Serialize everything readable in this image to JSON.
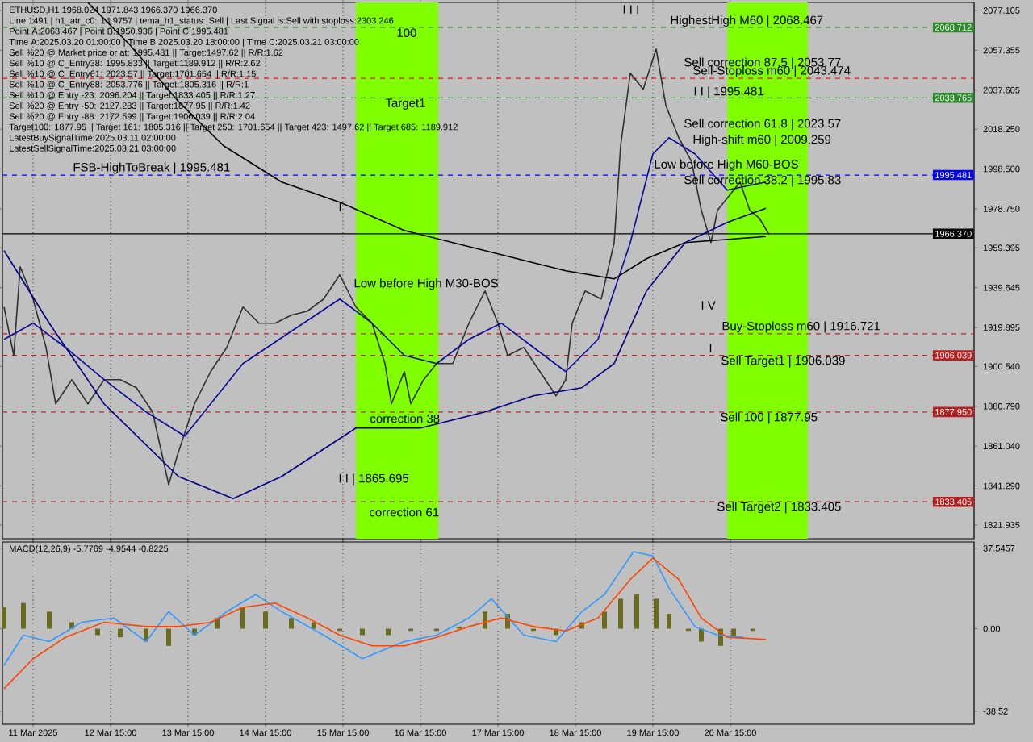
{
  "chart_data": [
    {
      "type": "line",
      "title": "ETHUSD,H1  1968.024 1971.843 1966.370 1966.370",
      "annotations": [
        "Line:1491 | h1_atr_c0: 14.9757 | tema_h1_status: Sell | Last Signal is:Sell with stoploss:2303.246",
        "Point A:2068.467 | Point B:1950.936 | Point C:1995.481",
        "Time A:2025.03.20 01:00:00 | Time B:2025.03.20 18:00:00 | Time C:2025.03.21 03:00:00",
        "Sell %20 @ Market price or at: 1995.481 || Target:1497.62 || R/R:1.62",
        "Sell %10 @ C_Entry38: 1995.833 || Target:1189.912 || R/R:2.62",
        "Sell %10 @ C_Entry61: 2023.57 || Target:1701.654 || R/R:1.15",
        "Sell %10 @ C_Entry88: 2053.776 || Target:1805.316 || R/R:1",
        "Sell %10 @ Entry -23: 2096.204 || Target:1833.405 || R/R:1.27",
        "Sell %20 @ Entry -50: 2127.233 || Target:1877.95 || R/R:1.42",
        "Sell %20 @ Entry -88: 2172.599 || Target:1906.039 || R/R:2.04",
        "Target100: 1877.95 || Target 161: 1805.316 || Target 250: 1701.654 || Target 423: 1497.62 || Target 685: 1189.912",
        "LatestBuySignalTime:2025.03.11 02:00:00",
        "LatestSellSignalTime:2025.03.21 03:00:00",
        "I I I",
        {
          "text": "HighestHigh    M60 | 2068.467",
          "x": "2025-03-19T20:00",
          "y": 2068.467
        },
        "Sell correction 87.5 | 2053.77",
        {
          "text": "Sell-Stoploss m60 | 2043.474",
          "x": "2025-03-20T03:00",
          "y": 2043.474
        },
        "I I | 1995.481",
        "Sell correction 61.8 | 2023.57",
        {
          "text": "High-shift m60 | 2009.259",
          "x": "2025-03-20T03:00",
          "y": 2009.259
        },
        {
          "text": "Low before High    M60-BOS",
          "x": "2025-03-19T15:00",
          "y": 1997
        },
        "Sell correction 38.2 | 1995.83",
        "I V",
        {
          "text": "Buy-Stoploss m60 | 1916.721",
          "x": "2025-03-20T12:00",
          "y": 1916.721
        },
        {
          "text": "I",
          "x": "2025-03-20T08:00",
          "y": 1907
        },
        "Sell Target1 | 1906.039",
        "Sell 100 | 1877.95",
        "Sell Target2 | 1833.405",
        {
          "text": "FSB-HighToBreak | 1995.481",
          "x": "2025-03-12T03:00",
          "y": 1995.481
        },
        {
          "text": "Low before High    M30-BOS",
          "x": "2025-03-15T18:00",
          "y": 1938
        },
        "I I | 1865.695",
        {
          "text": "correction 38",
          "x": "2025-03-15T23:00",
          "y": 1872
        },
        "correction 61",
        "100",
        "Target1",
        "I"
      ],
      "xlim": [
        "2025-03-11T05:30",
        "2025-03-23T18:30"
      ],
      "xticks": [
        {
          "value": "2025-03-11T15:00",
          "label": null
        },
        {
          "value": "2025-03-12T15:00",
          "label": null
        },
        {
          "value": "2025-03-13T15:00",
          "label": null
        },
        {
          "value": "2025-03-14T15:00",
          "label": null
        },
        {
          "value": "2025-03-15T15:00",
          "label": null
        },
        {
          "value": "2025-03-16T15:00",
          "label": null
        },
        {
          "value": "2025-03-17T15:00",
          "label": null
        },
        {
          "value": "2025-03-18T15:00",
          "label": null
        },
        {
          "value": "2025-03-19T15:00",
          "label": null
        },
        {
          "value": "2025-03-20T15:00",
          "label": null
        }
      ],
      "ylim": [
        1815.1,
        2081.1
      ],
      "yticks": [
        {
          "value": 2077.105,
          "label": "2077.105"
        },
        {
          "value": 2057.355,
          "label": "2057.355"
        },
        {
          "value": 2037.605,
          "label": "2037.605"
        },
        {
          "value": 2018.25,
          "label": "2018.250"
        },
        {
          "value": 1998.5,
          "label": "1998.500"
        },
        {
          "value": 1978.75,
          "label": "1978.750"
        },
        {
          "value": 1959.395,
          "label": "1959.395"
        },
        {
          "value": 1939.645,
          "label": "1939.645"
        },
        {
          "value": 1919.895,
          "label": "1919.895"
        },
        {
          "value": 1900.54,
          "label": "1900.540"
        },
        {
          "value": 1880.79,
          "label": "1880.790"
        },
        {
          "value": 1861.04,
          "label": "1861.040"
        },
        {
          "value": 1841.29,
          "label": "1841.290"
        },
        {
          "value": 1821.935,
          "label": "1821.935"
        }
      ],
      "tick_labels": "y",
      "grid": "x",
      "bands": [
        {
          "axis": "x",
          "from": "2025-03-15T19:00",
          "to": "2025-03-16T20:30",
          "color": "#80ff00"
        },
        {
          "axis": "x",
          "from": "2025-03-20T14:00",
          "to": "2025-03-21T15:00",
          "color": "#80ff00"
        }
      ],
      "ref_lines": [
        {
          "axis": "y",
          "value": 2068.712,
          "label": "2068.712",
          "color": "#2e8b2e",
          "line_style": "dashed"
        },
        {
          "axis": "y",
          "value": 2043.474,
          "color": "#cc2020",
          "line_style": "dashed"
        },
        {
          "axis": "y",
          "value": 2033.765,
          "label": "2033.765",
          "color": "#2e8b2e",
          "line_style": "dashed"
        },
        {
          "axis": "y",
          "value": 1995.481,
          "label": "1995.481",
          "color": "#0000ff",
          "line_style": "dashed"
        },
        {
          "axis": "y",
          "value": 1966.37,
          "label": "1966.370",
          "color": "#000000",
          "line_style": "solid"
        },
        {
          "axis": "y",
          "value": 1916.721,
          "color": "#cc2020",
          "line_style": "dashed"
        },
        {
          "axis": "y",
          "value": 1906.039,
          "label": "1906.039",
          "color": "#b22222",
          "line_style": "dashed"
        },
        {
          "axis": "y",
          "value": 1877.95,
          "label": "1877.950",
          "color": "#b22222",
          "line_style": "dashed"
        },
        {
          "axis": "y",
          "value": 1833.405,
          "label": "1833.405",
          "color": "#b22222",
          "line_style": "dashed"
        }
      ],
      "series": [
        {
          "color": "#303030",
          "x": [
            "2025-03-11T06:00",
            "2025-03-11T09:00",
            "2025-03-11T11:00",
            "2025-03-11T15:00",
            "2025-03-11T19:00",
            "2025-03-11T22:00",
            "2025-03-12T03:00",
            "2025-03-12T08:00",
            "2025-03-12T13:00",
            "2025-03-12T18:00",
            "2025-03-12T23:00",
            "2025-03-13T04:00",
            "2025-03-13T09:00",
            "2025-03-13T12:00",
            "2025-03-13T17:00",
            "2025-03-13T22:00",
            "2025-03-14T03:00",
            "2025-03-14T08:00",
            "2025-03-14T13:00",
            "2025-03-14T18:00",
            "2025-03-14T23:00",
            "2025-03-15T04:00",
            "2025-03-15T09:00",
            "2025-03-15T14:00",
            "2025-03-15T19:00",
            "2025-03-16T00:00",
            "2025-03-16T04:00",
            "2025-03-16T06:00",
            "2025-03-16T10:00",
            "2025-03-16T12:00",
            "2025-03-16T16:00",
            "2025-03-16T20:00",
            "2025-03-17T01:00",
            "2025-03-17T06:00",
            "2025-03-17T11:00",
            "2025-03-17T15:00",
            "2025-03-17T18:00",
            "2025-03-17T23:00",
            "2025-03-18T04:00",
            "2025-03-18T09:00",
            "2025-03-18T12:00",
            "2025-03-18T14:00",
            "2025-03-18T18:00",
            "2025-03-18T23:00",
            "2025-03-19T03:00",
            "2025-03-19T05:00",
            "2025-03-19T08:00",
            "2025-03-19T12:00",
            "2025-03-19T16:00",
            "2025-03-19T19:00",
            "2025-03-19T23:00",
            "2025-03-20T03:00",
            "2025-03-20T06:00",
            "2025-03-20T09:00",
            "2025-03-20T11:00",
            "2025-03-20T15:00",
            "2025-03-20T18:00",
            "2025-03-20T21:00",
            "2025-03-21T00:00",
            "2025-03-21T03:00"
          ],
          "values": [
            1930,
            1906,
            1950,
            1934,
            1910,
            1882,
            1894,
            1882,
            1894,
            1894,
            1890,
            1878,
            1842,
            1858,
            1882,
            1898,
            1910,
            1930,
            1922,
            1922,
            1926,
            1928,
            1934,
            1946,
            1930,
            1922,
            1902,
            1882,
            1898,
            1882,
            1894,
            1902,
            1902,
            1922,
            1938,
            1922,
            1906,
            1910,
            1898,
            1886,
            1894,
            1922,
            1938,
            1934,
            1962,
            2010,
            2046,
            2038,
            2058,
            2030,
            2014,
            2002,
            1978,
            1962,
            1978,
            1986,
            1992,
            1978,
            1974,
            1966
          ]
        },
        {
          "color": "#000000",
          "x": [
            "2025-03-12T08:00",
            "2025-03-12T21:00",
            "2025-03-13T12:00",
            "2025-03-14T02:00",
            "2025-03-14T20:00",
            "2025-03-15T14:00",
            "2025-03-16T10:00",
            "2025-03-17T11:00",
            "2025-03-18T12:00",
            "2025-03-19T03:00",
            "2025-03-19T13:00",
            "2025-03-20T01:00",
            "2025-03-21T02:00"
          ],
          "values": [
            2081,
            2060,
            2032,
            2010,
            1992,
            1982,
            1968,
            1958,
            1948,
            1944,
            1954,
            1962,
            1965
          ]
        },
        {
          "color": "#000080",
          "x": [
            "2025-03-11T06:00",
            "2025-03-11T20:00",
            "2025-03-12T13:00",
            "2025-03-13T12:00",
            "2025-03-14T05:00",
            "2025-03-14T20:00",
            "2025-03-15T19:00",
            "2025-03-16T15:00",
            "2025-03-17T11:00",
            "2025-03-18T02:00",
            "2025-03-18T17:00",
            "2025-03-19T03:00",
            "2025-03-19T13:00",
            "2025-03-20T01:00",
            "2025-03-20T14:00",
            "2025-03-21T02:00"
          ],
          "values": [
            1958,
            1922,
            1882,
            1846,
            1835,
            1846,
            1870,
            1870,
            1878,
            1886,
            1890,
            1902,
            1938,
            1962,
            1972,
            1979
          ]
        },
        {
          "color": "#0a0a9a",
          "x": [
            "2025-03-11T06:00",
            "2025-03-11T15:00",
            "2025-03-12T01:00",
            "2025-03-12T13:00",
            "2025-03-13T02:00",
            "2025-03-13T14:00",
            "2025-03-13T22:00",
            "2025-03-14T08:00",
            "2025-03-14T23:00",
            "2025-03-15T14:00",
            "2025-03-16T00:00",
            "2025-03-16T10:00",
            "2025-03-16T20:00",
            "2025-03-17T06:00",
            "2025-03-17T16:00",
            "2025-03-18T02:00",
            "2025-03-18T12:00",
            "2025-03-18T22:00",
            "2025-03-19T08:00",
            "2025-03-19T15:00",
            "2025-03-19T20:00",
            "2025-03-20T04:00",
            "2025-03-20T14:00",
            "2025-03-21T02:00"
          ],
          "values": [
            1914,
            1922,
            1910,
            1894,
            1878,
            1866,
            1882,
            1902,
            1918,
            1934,
            1922,
            1906,
            1902,
            1914,
            1922,
            1910,
            1898,
            1914,
            1962,
            2006,
            2014,
            2006,
            1988,
            1992
          ]
        }
      ]
    },
    {
      "type": "line",
      "title": "MACD(12,26,9) -5.7769 -4.9544 -0.8225",
      "xlim": [
        "2025-03-11T05:30",
        "2025-03-23T18:30"
      ],
      "xticks": [
        {
          "value": "2025-03-11T15:00",
          "label": "11 Mar 2025"
        },
        {
          "value": "2025-03-12T15:00",
          "label": "12 Mar 15:00"
        },
        {
          "value": "2025-03-13T15:00",
          "label": "13 Mar 15:00"
        },
        {
          "value": "2025-03-14T15:00",
          "label": "14 Mar 15:00"
        },
        {
          "value": "2025-03-15T15:00",
          "label": "15 Mar 15:00"
        },
        {
          "value": "2025-03-16T15:00",
          "label": "16 Mar 15:00"
        },
        {
          "value": "2025-03-17T15:00",
          "label": "17 Mar 15:00"
        },
        {
          "value": "2025-03-18T15:00",
          "label": "18 Mar 15:00"
        },
        {
          "value": "2025-03-19T15:00",
          "label": "19 Mar 15:00"
        },
        {
          "value": "2025-03-20T15:00",
          "label": "20 Mar 15:00"
        }
      ],
      "ylim": [
        -44.6,
        40.5
      ],
      "yticks": [
        {
          "value": 37.5457,
          "label": "37.5457"
        },
        {
          "value": 0,
          "label": "0.00"
        },
        {
          "value": -38.52,
          "label": "-38.52"
        }
      ],
      "grid": "x",
      "series": [
        {
          "type": "bar",
          "color": "#6b6b1f",
          "x": [
            "2025-03-11T06:00",
            "2025-03-11T12:00",
            "2025-03-11T20:00",
            "2025-03-12T03:00",
            "2025-03-12T11:00",
            "2025-03-12T18:00",
            "2025-03-13T02:00",
            "2025-03-13T09:00",
            "2025-03-13T17:00",
            "2025-03-14T00:00",
            "2025-03-14T08:00",
            "2025-03-14T15:00",
            "2025-03-14T23:00",
            "2025-03-15T06:00",
            "2025-03-15T14:00",
            "2025-03-15T21:00",
            "2025-03-16T05:00",
            "2025-03-16T12:00",
            "2025-03-16T20:00",
            "2025-03-17T03:00",
            "2025-03-17T11:00",
            "2025-03-17T18:00",
            "2025-03-18T02:00",
            "2025-03-18T09:00",
            "2025-03-18T17:00",
            "2025-03-19T00:00",
            "2025-03-19T05:00",
            "2025-03-19T10:00",
            "2025-03-19T16:00",
            "2025-03-19T20:00",
            "2025-03-20T02:00",
            "2025-03-20T06:00",
            "2025-03-20T12:00",
            "2025-03-20T16:00",
            "2025-03-20T22:00",
            "2025-03-21T03:00"
          ],
          "values": [
            10,
            12,
            8,
            3,
            -3,
            -4,
            -6,
            -8,
            -3,
            5,
            10,
            8,
            5,
            3,
            -1,
            -3,
            -3,
            -1,
            -1,
            1,
            8,
            7,
            -1,
            -3,
            3,
            8,
            14,
            16,
            14,
            7,
            -1,
            -6,
            -8,
            -4,
            -1,
            0
          ]
        },
        {
          "color": "#3399ff",
          "x": [
            "2025-03-11T06:00",
            "2025-03-11T12:00",
            "2025-03-11T20:00",
            "2025-03-12T06:00",
            "2025-03-12T16:00",
            "2025-03-13T02:00",
            "2025-03-13T09:00",
            "2025-03-13T17:00",
            "2025-03-14T03:00",
            "2025-03-14T12:00",
            "2025-03-14T20:00",
            "2025-03-15T09:00",
            "2025-03-15T21:00",
            "2025-03-16T10:00",
            "2025-03-16T20:00",
            "2025-03-17T06:00",
            "2025-03-17T13:00",
            "2025-03-17T23:00",
            "2025-03-18T09:00",
            "2025-03-18T17:00",
            "2025-03-19T00:00",
            "2025-03-19T09:00",
            "2025-03-19T15:00",
            "2025-03-19T20:00",
            "2025-03-20T04:00",
            "2025-03-20T11:00",
            "2025-03-20T19:00"
          ],
          "values": [
            -17,
            -3,
            -6,
            3,
            5,
            -6,
            8,
            -3,
            8,
            16,
            8,
            -3,
            -14,
            -6,
            -3,
            5,
            14,
            -3,
            -6,
            8,
            16,
            36,
            34,
            19,
            1,
            -3,
            -4
          ]
        },
        {
          "color": "#ff4500",
          "x": [
            "2025-03-11T06:00",
            "2025-03-11T15:00",
            "2025-03-12T01:00",
            "2025-03-12T13:00",
            "2025-03-13T02:00",
            "2025-03-13T12:00",
            "2025-03-13T22:00",
            "2025-03-14T08:00",
            "2025-03-14T18:00",
            "2025-03-15T04:00",
            "2025-03-15T14:00",
            "2025-03-16T00:00",
            "2025-03-16T10:00",
            "2025-03-16T20:00",
            "2025-03-17T06:00",
            "2025-03-17T16:00",
            "2025-03-18T02:00",
            "2025-03-18T12:00",
            "2025-03-18T22:00",
            "2025-03-19T08:00",
            "2025-03-19T15:00",
            "2025-03-19T23:00",
            "2025-03-20T06:00",
            "2025-03-20T14:00",
            "2025-03-21T02:00"
          ],
          "values": [
            -28,
            -14,
            -4,
            3,
            1,
            1,
            3,
            10,
            12,
            5,
            -3,
            -8,
            -8,
            -4,
            1,
            5,
            1,
            -1,
            5,
            23,
            33,
            23,
            5,
            -4,
            -5
          ]
        }
      ]
    }
  ]
}
